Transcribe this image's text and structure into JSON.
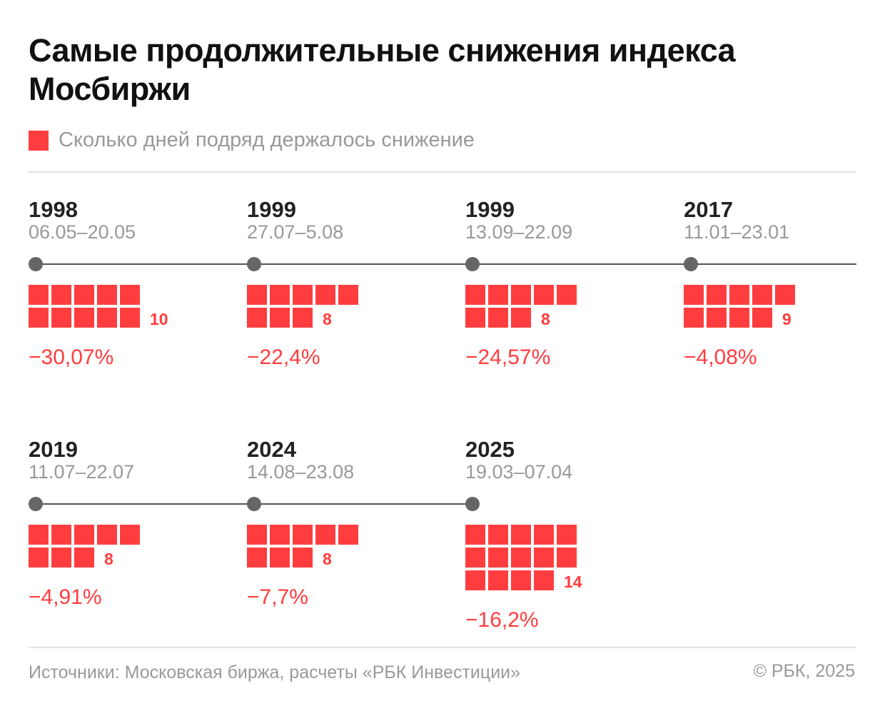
{
  "title": "Самые продолжительные снижения индекса Мосбиржи",
  "legend": "Сколько дней подряд держалось снижение",
  "colors": {
    "accent": "#ff3d3f",
    "timeline": "#555555",
    "dot": "#666666",
    "muted": "#999999"
  },
  "chart_data": {
    "type": "table",
    "series_name": "Сколько дней подряд держалось снижение",
    "items": [
      {
        "year": "1998",
        "dates": "06.05–20.05",
        "days": 10,
        "change": "−30,07%"
      },
      {
        "year": "1999",
        "dates": "27.07–5.08",
        "days": 8,
        "change": "−22,4%"
      },
      {
        "year": "1999",
        "dates": "13.09–22.09",
        "days": 8,
        "change": "−24,57%"
      },
      {
        "year": "2017",
        "dates": "11.01–23.01",
        "days": 9,
        "change": "−4,08%"
      },
      {
        "year": "2019",
        "dates": "11.07–22.07",
        "days": 8,
        "change": "−4,91%"
      },
      {
        "year": "2024",
        "dates": "14.08–23.08",
        "days": 8,
        "change": "−7,7%"
      },
      {
        "year": "2025",
        "dates": "19.03–07.04",
        "days": 14,
        "change": "−16,2%"
      }
    ]
  },
  "footer": {
    "source": "Источники: Московская биржа, расчеты «РБК Инвестиции»",
    "copyright": "© РБК, 2025"
  }
}
